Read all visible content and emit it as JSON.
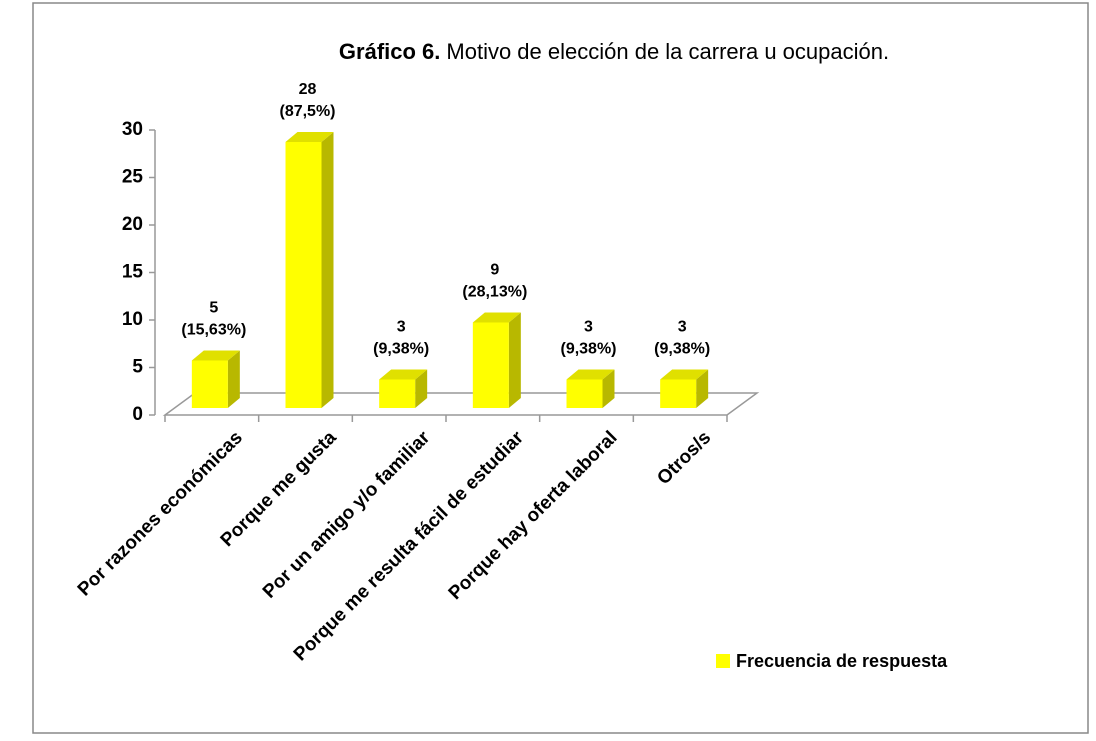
{
  "chart_data": {
    "type": "bar3d",
    "title": [
      "Gráfico 6.",
      "Motivo de elección de la carrera u ocupación."
    ],
    "categories": [
      "Por razones económicas",
      "Porque me gusta",
      "Por un amigo y/o familiar",
      "Porque me resulta fácil de estudiar",
      "Porque hay oferta laboral",
      "Otros/s"
    ],
    "series": [
      {
        "name": "Frecuencia de respuesta",
        "color": "#ffff00",
        "values": [
          5,
          28,
          3,
          9,
          3,
          3
        ],
        "percent_labels": [
          "(15,63%)",
          "(87,5%)",
          "(9,38%)",
          "(28,13%)",
          "(9,38%)",
          "(9,38%)"
        ]
      }
    ],
    "ylim": [
      0,
      30
    ],
    "yticks": [
      0,
      5,
      10,
      15,
      20,
      25,
      30
    ],
    "grid": false,
    "legend": "bottom-right"
  }
}
